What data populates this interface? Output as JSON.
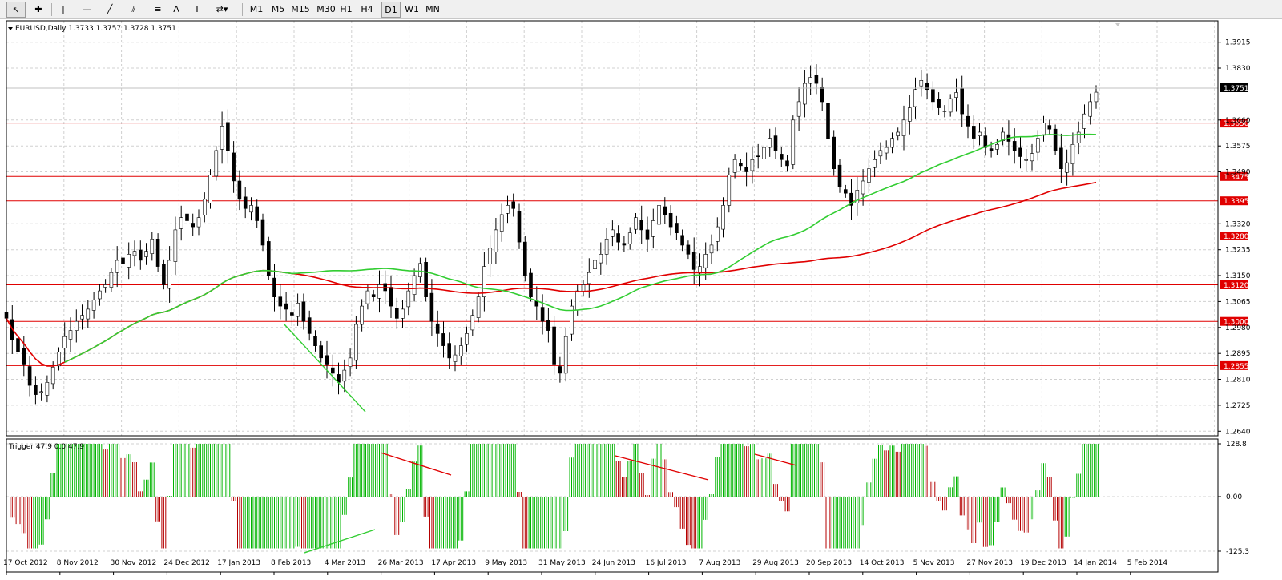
{
  "toolbar": {
    "tools": [
      {
        "name": "cursor-tool-button",
        "icon": "cursor-arrow-icon",
        "glyph": "↖"
      },
      {
        "name": "crosshair-tool-button",
        "icon": "crosshair-icon",
        "glyph": "✚"
      },
      {
        "name": "vertical-line-tool-button",
        "icon": "vertical-line-icon",
        "glyph": "|"
      },
      {
        "name": "horizontal-line-tool-button",
        "icon": "horizontal-line-icon",
        "glyph": "—"
      },
      {
        "name": "trendline-tool-button",
        "icon": "trendline-icon",
        "glyph": "╱"
      },
      {
        "name": "equidistant-channel-tool-button",
        "icon": "channel-icon",
        "glyph": "⫽"
      },
      {
        "name": "fibonacci-tool-button",
        "icon": "fibonacci-icon",
        "glyph": "≡"
      },
      {
        "name": "text-tool-button",
        "icon": "text-a-icon",
        "glyph": "A"
      },
      {
        "name": "text-label-tool-button",
        "icon": "text-label-icon",
        "glyph": "T"
      },
      {
        "name": "arrows-tool-button",
        "icon": "arrows-dropdown-icon",
        "glyph": "⇄▾"
      }
    ],
    "timeframes": [
      "M1",
      "M5",
      "M15",
      "M30",
      "H1",
      "H4",
      "D1",
      "W1",
      "MN"
    ],
    "active_timeframe": "D1"
  },
  "main_chart": {
    "symbol_header": "EURUSD,Daily  1.3733 1.3757 1.3728 1.3751",
    "y_ticks": [
      "1.3915",
      "1.3830",
      "1.3660",
      "1.3575",
      "1.3490",
      "1.3320",
      "1.3235",
      "1.3150",
      "1.3065",
      "1.2980",
      "1.2895",
      "1.2810",
      "1.2725",
      "1.2640"
    ],
    "current_price": "1.3751",
    "levels": [
      "1.3650",
      "1.3475",
      "1.3395",
      "1.3280",
      "1.3120",
      "1.3000",
      "1.2855"
    ],
    "colors": {
      "bull": "#00b400",
      "bear": "#b40000",
      "ma_fast": "#32cd32",
      "ma_slow": "#e00000",
      "level": "#e00000"
    }
  },
  "indicator": {
    "header": "Trigger 47.9 0.0 47.9",
    "y_ticks": [
      "128.8",
      "0.00",
      "-125.3"
    ]
  },
  "x_axis": {
    "labels": [
      "17 Oct 2012",
      "8 Nov 2012",
      "30 Nov 2012",
      "24 Dec 2012",
      "17 Jan 2013",
      "8 Feb 2013",
      "4 Mar 2013",
      "26 Mar 2013",
      "17 Apr 2013",
      "9 May 2013",
      "31 May 2013",
      "24 Jun 2013",
      "16 Jul 2013",
      "7 Aug 2013",
      "29 Aug 2013",
      "20 Sep 2013",
      "14 Oct 2013",
      "5 Nov 2013",
      "27 Nov 2013",
      "19 Dec 2013",
      "14 Jan 2014",
      "5 Feb 2014"
    ]
  },
  "chart_data": {
    "type": "candlestick",
    "symbol": "EURUSD",
    "timeframe": "Daily",
    "last_ohlc": {
      "open": 1.3733,
      "high": 1.3757,
      "low": 1.3728,
      "close": 1.3751
    },
    "ylim": [
      1.2625,
      1.3985
    ],
    "close_series": [
      1.301,
      1.294,
      1.29,
      1.286,
      1.279,
      1.276,
      1.277,
      1.28,
      1.285,
      1.29,
      1.295,
      1.297,
      1.3,
      1.302,
      1.304,
      1.307,
      1.31,
      1.312,
      1.316,
      1.32,
      1.319,
      1.322,
      1.323,
      1.32,
      1.323,
      1.327,
      1.318,
      1.312,
      1.32,
      1.33,
      1.334,
      1.333,
      1.331,
      1.334,
      1.34,
      1.348,
      1.356,
      1.364,
      1.356,
      1.346,
      1.34,
      1.337,
      1.338,
      1.333,
      1.325,
      1.315,
      1.308,
      1.305,
      1.304,
      1.302,
      1.306,
      1.3,
      1.296,
      1.292,
      1.288,
      1.286,
      1.283,
      1.28,
      1.284,
      1.288,
      1.299,
      1.305,
      1.31,
      1.308,
      1.312,
      1.31,
      1.305,
      1.301,
      1.304,
      1.31,
      1.315,
      1.319,
      1.308,
      1.3,
      1.296,
      1.292,
      1.288,
      1.289,
      1.292,
      1.296,
      1.302,
      1.308,
      1.318,
      1.324,
      1.33,
      1.335,
      1.338,
      1.337,
      1.326,
      1.315,
      1.308,
      1.305,
      1.3,
      1.297,
      1.286,
      1.283,
      1.295,
      1.305,
      1.31,
      1.312,
      1.316,
      1.32,
      1.322,
      1.327,
      1.33,
      1.326,
      1.325,
      1.329,
      1.334,
      1.33,
      1.327,
      1.333,
      1.338,
      1.335,
      1.331,
      1.329,
      1.325,
      1.322,
      1.317,
      1.318,
      1.322,
      1.325,
      1.331,
      1.338,
      1.348,
      1.353,
      1.351,
      1.349,
      1.353,
      1.354,
      1.357,
      1.36,
      1.356,
      1.353,
      1.351,
      1.366,
      1.372,
      1.378,
      1.38,
      1.378,
      1.372,
      1.36,
      1.35,
      1.344,
      1.342,
      1.338,
      1.343,
      1.346,
      1.35,
      1.353,
      1.356,
      1.357,
      1.36,
      1.362,
      1.366,
      1.37,
      1.376,
      1.379,
      1.376,
      1.372,
      1.37,
      1.369,
      1.373,
      1.375,
      1.368,
      1.364,
      1.36,
      1.362,
      1.357,
      1.356,
      1.358,
      1.362,
      1.359,
      1.356,
      1.354,
      1.353,
      1.355,
      1.36,
      1.365,
      1.363,
      1.356,
      1.35,
      1.352,
      1.358,
      1.362,
      1.368,
      1.372,
      1.3751
    ]
  }
}
